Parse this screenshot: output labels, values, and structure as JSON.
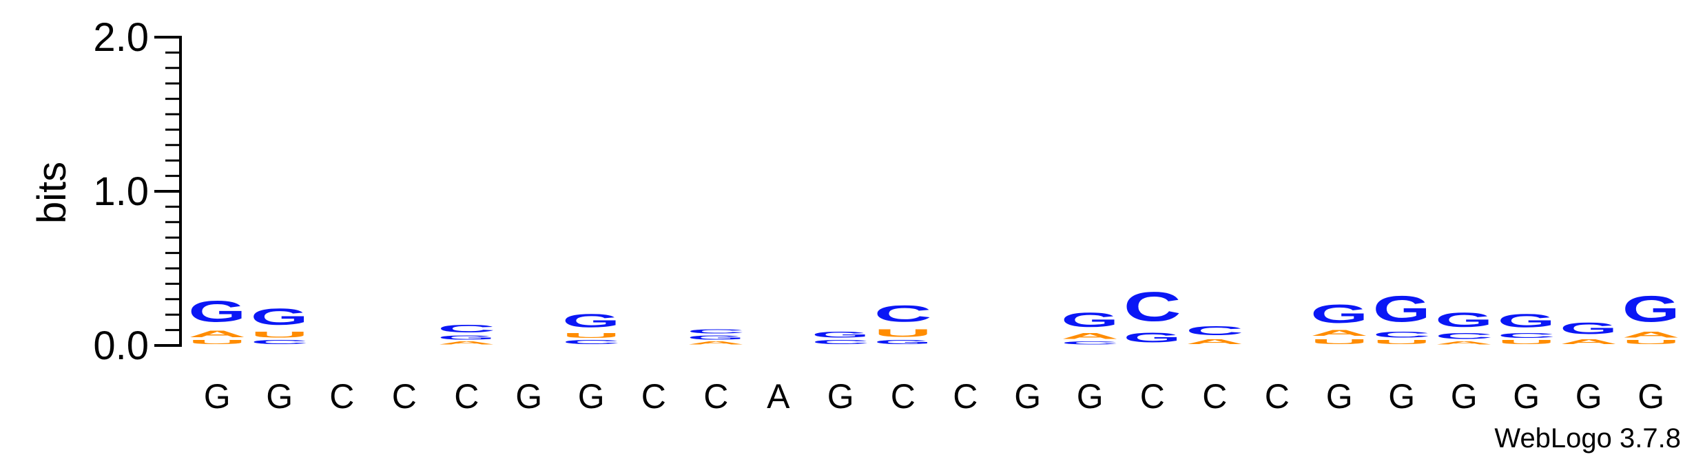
{
  "chart_data": {
    "type": "sequence-logo",
    "ylabel": "bits",
    "ylim": [
      0,
      2.0
    ],
    "yticks": [
      "0.0",
      "1.0",
      "2.0"
    ],
    "colors": {
      "G": "#0a17f5",
      "C": "#0a17f5",
      "A": "#ff8c00",
      "U": "#ff8c00"
    },
    "positions": [
      {
        "label": "G",
        "stack": [
          [
            "U",
            0.04
          ],
          [
            "A",
            0.07
          ],
          [
            "G",
            0.22
          ]
        ]
      },
      {
        "label": "G",
        "stack": [
          [
            "C",
            0.04
          ],
          [
            "U",
            0.06
          ],
          [
            "G",
            0.17
          ]
        ]
      },
      {
        "label": "C",
        "stack": []
      },
      {
        "label": "C",
        "stack": []
      },
      {
        "label": "C",
        "stack": [
          [
            "A",
            0.03
          ],
          [
            "G",
            0.04
          ],
          [
            "C",
            0.08
          ]
        ]
      },
      {
        "label": "G",
        "stack": []
      },
      {
        "label": "G",
        "stack": [
          [
            "C",
            0.04
          ],
          [
            "U",
            0.05
          ],
          [
            "G",
            0.14
          ]
        ]
      },
      {
        "label": "C",
        "stack": []
      },
      {
        "label": "C",
        "stack": [
          [
            "A",
            0.03
          ],
          [
            "G",
            0.04
          ],
          [
            "C",
            0.04
          ]
        ]
      },
      {
        "label": "A",
        "stack": []
      },
      {
        "label": "G",
        "stack": [
          [
            "C",
            0.04
          ],
          [
            "G",
            0.06
          ]
        ]
      },
      {
        "label": "C",
        "stack": [
          [
            "G",
            0.04
          ],
          [
            "U",
            0.08
          ],
          [
            "C",
            0.17
          ]
        ]
      },
      {
        "label": "C",
        "stack": []
      },
      {
        "label": "G",
        "stack": []
      },
      {
        "label": "G",
        "stack": [
          [
            "C",
            0.03
          ],
          [
            "A",
            0.06
          ],
          [
            "G",
            0.15
          ]
        ]
      },
      {
        "label": "C",
        "stack": [
          [
            "G",
            0.1
          ],
          [
            "C",
            0.3
          ]
        ]
      },
      {
        "label": "C",
        "stack": [
          [
            "A",
            0.05
          ],
          [
            "C",
            0.09
          ]
        ]
      },
      {
        "label": "C",
        "stack": []
      },
      {
        "label": "G",
        "stack": [
          [
            "U",
            0.05
          ],
          [
            "A",
            0.06
          ],
          [
            "G",
            0.19
          ]
        ]
      },
      {
        "label": "G",
        "stack": [
          [
            "U",
            0.04
          ],
          [
            "C",
            0.06
          ],
          [
            "G",
            0.27
          ]
        ]
      },
      {
        "label": "G",
        "stack": [
          [
            "A",
            0.03
          ],
          [
            "C",
            0.06
          ],
          [
            "G",
            0.15
          ]
        ]
      },
      {
        "label": "G",
        "stack": [
          [
            "U",
            0.04
          ],
          [
            "C",
            0.05
          ],
          [
            "G",
            0.14
          ]
        ]
      },
      {
        "label": "G",
        "stack": [
          [
            "A",
            0.05
          ],
          [
            "G",
            0.12
          ]
        ]
      },
      {
        "label": "G",
        "stack": [
          [
            "U",
            0.04
          ],
          [
            "A",
            0.06
          ],
          [
            "G",
            0.27
          ]
        ]
      }
    ]
  },
  "credit": "WebLogo 3.7.8"
}
